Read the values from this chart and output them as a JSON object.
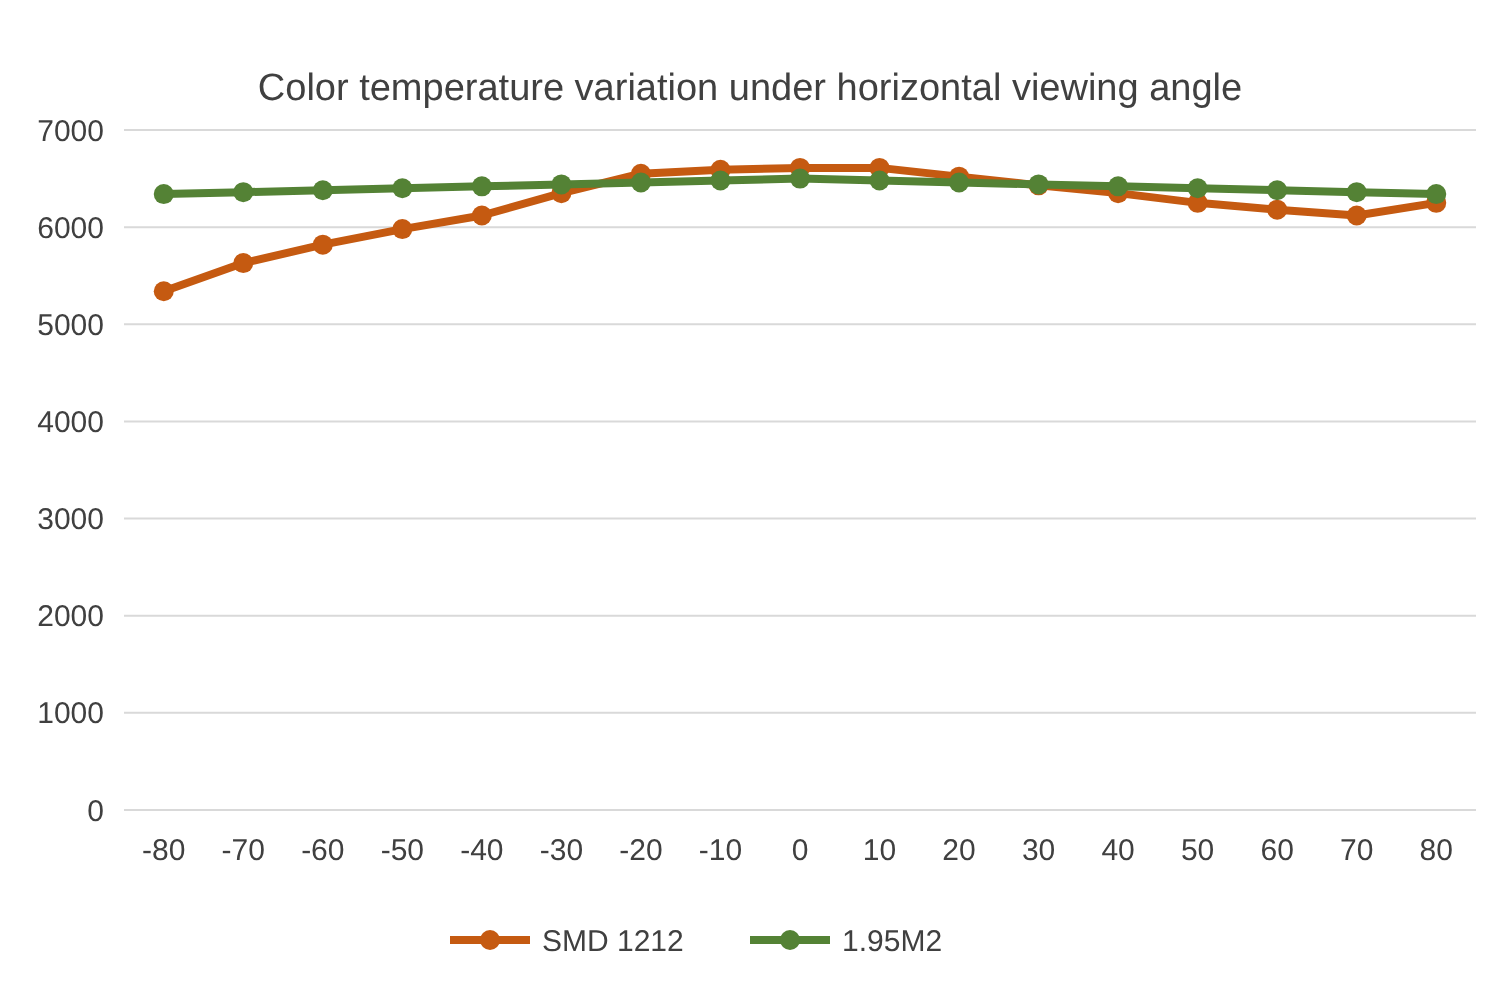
{
  "chart_data": {
    "type": "line",
    "title": "Color temperature variation under horizontal viewing angle",
    "categories": [
      "-80",
      "-70",
      "-60",
      "-50",
      "-40",
      "-30",
      "-20",
      "-10",
      "0",
      "10",
      "20",
      "30",
      "40",
      "50",
      "60",
      "70",
      "80"
    ],
    "series": [
      {
        "name": "SMD 1212",
        "color": "#c55a11",
        "values": [
          5340,
          5630,
          5820,
          5980,
          6120,
          6350,
          6550,
          6590,
          6610,
          6610,
          6520,
          6430,
          6350,
          6250,
          6180,
          6120,
          6250
        ]
      },
      {
        "name": "1.95M2",
        "color": "#548235",
        "values": [
          6340,
          6360,
          6380,
          6400,
          6420,
          6440,
          6460,
          6480,
          6500,
          6480,
          6460,
          6440,
          6420,
          6400,
          6380,
          6360,
          6340
        ]
      }
    ],
    "ylim": [
      0,
      7000
    ],
    "yticks": [
      0,
      1000,
      2000,
      3000,
      4000,
      5000,
      6000,
      7000
    ],
    "grid": "y",
    "legend": "bottom",
    "marker": "circle",
    "line_style": "solid"
  }
}
